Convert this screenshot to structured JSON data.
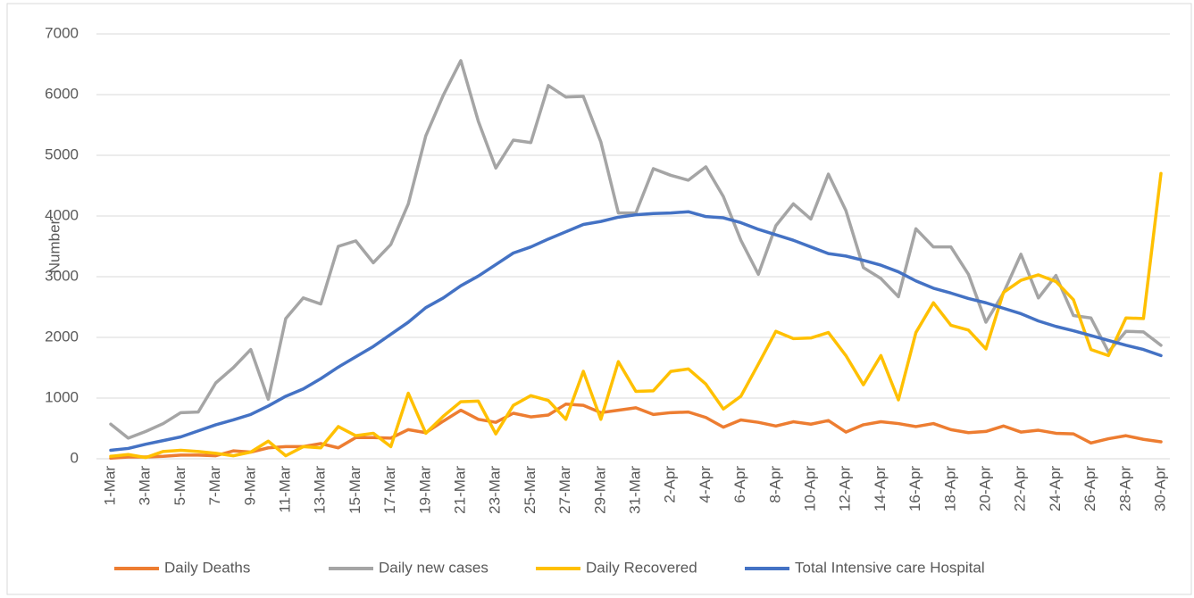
{
  "chart_data": {
    "type": "line",
    "y_label": "Number",
    "categories": [
      "1-Mar",
      null,
      "3-Mar",
      null,
      "5-Mar",
      null,
      "7-Mar",
      null,
      "9-Mar",
      null,
      "11-Mar",
      null,
      "13-Mar",
      null,
      "15-Mar",
      null,
      "17-Mar",
      null,
      "19-Mar",
      null,
      "21-Mar",
      null,
      "23-Mar",
      null,
      "25-Mar",
      null,
      "27-Mar",
      null,
      "29-Mar",
      null,
      "31-Mar",
      null,
      "2-Apr",
      null,
      "4-Apr",
      null,
      "6-Apr",
      null,
      "8-Apr",
      null,
      "10-Apr",
      null,
      "12-Apr",
      null,
      "14-Apr",
      null,
      "16-Apr",
      null,
      "18-Apr",
      null,
      "20-Apr",
      null,
      "22-Apr",
      null,
      "24-Apr",
      null,
      "26-Apr",
      null,
      "28-Apr",
      null,
      "30-Apr"
    ],
    "series": [
      {
        "name": "Daily Deaths",
        "color": "#ed7d31",
        "values": [
          10,
          30,
          30,
          40,
          60,
          60,
          50,
          130,
          110,
          180,
          200,
          200,
          250,
          180,
          350,
          350,
          340,
          480,
          430,
          620,
          800,
          650,
          600,
          750,
          690,
          720,
          900,
          880,
          760,
          800,
          840,
          730,
          760,
          770,
          680,
          520,
          640,
          600,
          540,
          610,
          570,
          630,
          440,
          560,
          610,
          580,
          530,
          580,
          480,
          430,
          450,
          540,
          440,
          470,
          420,
          410,
          260,
          330,
          380,
          320,
          280
        ]
      },
      {
        "name": "Daily new cases",
        "color": "#a5a5a5",
        "values": [
          570,
          340,
          450,
          580,
          760,
          770,
          1250,
          1500,
          1800,
          980,
          2310,
          2650,
          2550,
          3500,
          3590,
          3230,
          3530,
          4200,
          5320,
          5990,
          6560,
          5560,
          4790,
          5250,
          5210,
          6150,
          5960,
          5970,
          5220,
          4050,
          4050,
          4780,
          4670,
          4590,
          4810,
          4320,
          3600,
          3040,
          3840,
          4200,
          3950,
          4690,
          4090,
          3150,
          2970,
          2670,
          3790,
          3490,
          3490,
          3040,
          2250,
          2730,
          3370,
          2650,
          3020,
          2360,
          2320,
          1760,
          2100,
          2090,
          1870
        ]
      },
      {
        "name": "Daily Recovered",
        "color": "#ffc000",
        "values": [
          40,
          70,
          20,
          120,
          140,
          120,
          90,
          50,
          110,
          290,
          50,
          200,
          180,
          530,
          380,
          420,
          200,
          1080,
          420,
          700,
          940,
          950,
          410,
          880,
          1040,
          960,
          650,
          1440,
          650,
          1600,
          1110,
          1120,
          1440,
          1480,
          1230,
          820,
          1030,
          1560,
          2100,
          1980,
          1990,
          2080,
          1700,
          1220,
          1700,
          970,
          2080,
          2570,
          2200,
          2120,
          1810,
          2740,
          2940,
          3030,
          2920,
          2620,
          1800,
          1700,
          2320,
          2310,
          4700
        ]
      },
      {
        "name": "Total Intensive care Hospital",
        "color": "#4472c4",
        "values": [
          140,
          170,
          240,
          300,
          360,
          460,
          560,
          640,
          730,
          870,
          1030,
          1150,
          1320,
          1510,
          1680,
          1850,
          2050,
          2250,
          2490,
          2650,
          2850,
          3010,
          3200,
          3390,
          3490,
          3620,
          3740,
          3860,
          3910,
          3980,
          4020,
          4040,
          4050,
          4070,
          3990,
          3970,
          3890,
          3780,
          3690,
          3600,
          3490,
          3380,
          3340,
          3270,
          3190,
          3080,
          2930,
          2810,
          2730,
          2640,
          2570,
          2480,
          2390,
          2270,
          2180,
          2110,
          2030,
          1950,
          1870,
          1800,
          1700
        ]
      }
    ],
    "ylim": [
      0,
      7000
    ],
    "yticks": [
      0,
      1000,
      2000,
      3000,
      4000,
      5000,
      6000,
      7000
    ],
    "grid": true,
    "legend": "bottom"
  }
}
